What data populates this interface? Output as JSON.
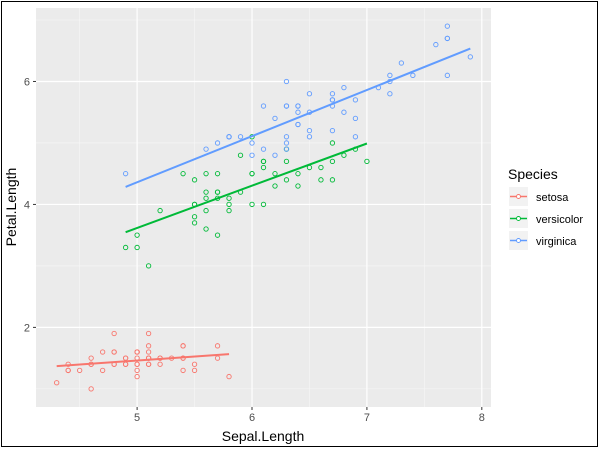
{
  "chart_data": {
    "type": "scatter",
    "xlabel": "Sepal.Length",
    "ylabel": "Petal.Length",
    "xlim": [
      4.12,
      8.08
    ],
    "ylim": [
      0.705,
      7.195
    ],
    "x_ticks": [
      5,
      6,
      7,
      8
    ],
    "y_ticks": [
      2,
      4,
      6
    ],
    "grid": true,
    "legend": {
      "title": "Species",
      "position": "right"
    },
    "series": [
      {
        "name": "setosa",
        "color": "#F8766D",
        "x": [
          5.1,
          4.9,
          4.7,
          4.6,
          5.0,
          5.4,
          4.6,
          5.0,
          4.4,
          4.9,
          5.4,
          4.8,
          4.8,
          4.3,
          5.8,
          5.7,
          5.4,
          5.1,
          5.7,
          5.1,
          5.4,
          5.1,
          4.6,
          5.1,
          4.8,
          5.0,
          5.0,
          5.2,
          5.2,
          4.7,
          4.8,
          5.4,
          5.2,
          5.5,
          4.9,
          5.0,
          5.5,
          4.9,
          4.4,
          5.1,
          5.0,
          4.5,
          4.4,
          5.0,
          5.1,
          4.8,
          5.1,
          4.6,
          5.3,
          5.0
        ],
        "y": [
          1.4,
          1.4,
          1.3,
          1.5,
          1.4,
          1.7,
          1.4,
          1.5,
          1.4,
          1.5,
          1.5,
          1.6,
          1.4,
          1.1,
          1.2,
          1.5,
          1.3,
          1.4,
          1.7,
          1.5,
          1.7,
          1.5,
          1.0,
          1.7,
          1.9,
          1.6,
          1.6,
          1.5,
          1.4,
          1.6,
          1.6,
          1.5,
          1.5,
          1.4,
          1.5,
          1.2,
          1.3,
          1.4,
          1.3,
          1.5,
          1.3,
          1.3,
          1.3,
          1.6,
          1.9,
          1.4,
          1.6,
          1.4,
          1.5,
          1.4
        ],
        "fit_line": {
          "x": [
            4.3,
            5.8
          ],
          "y": [
            1.369,
            1.566
          ]
        }
      },
      {
        "name": "versicolor",
        "color": "#00BA38",
        "x": [
          7.0,
          6.4,
          6.9,
          5.5,
          6.5,
          5.7,
          6.3,
          4.9,
          6.6,
          5.2,
          5.0,
          5.9,
          6.0,
          6.1,
          5.6,
          6.7,
          5.6,
          5.8,
          6.2,
          5.6,
          5.9,
          6.1,
          6.3,
          6.1,
          6.4,
          6.6,
          6.8,
          6.7,
          6.0,
          5.7,
          5.5,
          5.5,
          5.8,
          6.0,
          5.4,
          6.0,
          6.7,
          6.3,
          5.6,
          5.5,
          5.5,
          6.1,
          5.8,
          5.0,
          5.6,
          5.7,
          5.7,
          6.2,
          5.1,
          5.7
        ],
        "y": [
          4.7,
          4.5,
          4.9,
          4.0,
          4.6,
          4.5,
          4.7,
          3.3,
          4.6,
          3.9,
          3.5,
          4.2,
          4.0,
          4.7,
          3.6,
          4.4,
          4.5,
          4.1,
          4.5,
          3.9,
          4.8,
          4.0,
          4.9,
          4.7,
          4.3,
          4.4,
          4.8,
          5.0,
          4.5,
          3.5,
          3.8,
          3.7,
          3.9,
          5.1,
          4.5,
          4.5,
          4.7,
          4.4,
          4.1,
          4.0,
          4.4,
          4.6,
          4.0,
          3.3,
          4.2,
          4.2,
          4.2,
          4.3,
          3.0,
          4.1
        ],
        "fit_line": {
          "x": [
            4.9,
            7.0
          ],
          "y": [
            3.549,
            4.991
          ]
        }
      },
      {
        "name": "virginica",
        "color": "#619CFF",
        "x": [
          6.3,
          5.8,
          7.1,
          6.3,
          6.5,
          7.6,
          4.9,
          7.3,
          6.7,
          7.2,
          6.5,
          6.4,
          6.8,
          5.7,
          5.8,
          6.4,
          6.5,
          7.7,
          7.7,
          6.0,
          6.9,
          5.6,
          7.7,
          6.3,
          6.7,
          7.2,
          6.2,
          6.1,
          6.4,
          7.2,
          7.4,
          7.9,
          6.4,
          6.3,
          6.1,
          7.7,
          6.3,
          6.4,
          6.0,
          6.9,
          6.7,
          6.9,
          5.8,
          6.8,
          6.7,
          6.7,
          6.3,
          6.5,
          6.2,
          5.9
        ],
        "y": [
          6.0,
          5.1,
          5.9,
          5.6,
          5.8,
          6.6,
          4.5,
          6.3,
          5.8,
          6.1,
          5.1,
          5.3,
          5.5,
          5.0,
          5.1,
          5.3,
          5.5,
          6.7,
          6.9,
          5.0,
          5.7,
          4.9,
          6.7,
          4.9,
          5.7,
          6.0,
          4.8,
          4.9,
          5.6,
          5.8,
          6.1,
          6.4,
          5.6,
          5.1,
          5.6,
          6.1,
          5.6,
          5.5,
          4.8,
          5.4,
          5.6,
          5.1,
          5.1,
          5.9,
          5.7,
          5.2,
          5.0,
          5.2,
          5.4,
          5.1
        ],
        "fit_line": {
          "x": [
            4.9,
            7.9
          ],
          "y": [
            4.285,
            6.536
          ]
        }
      }
    ]
  }
}
